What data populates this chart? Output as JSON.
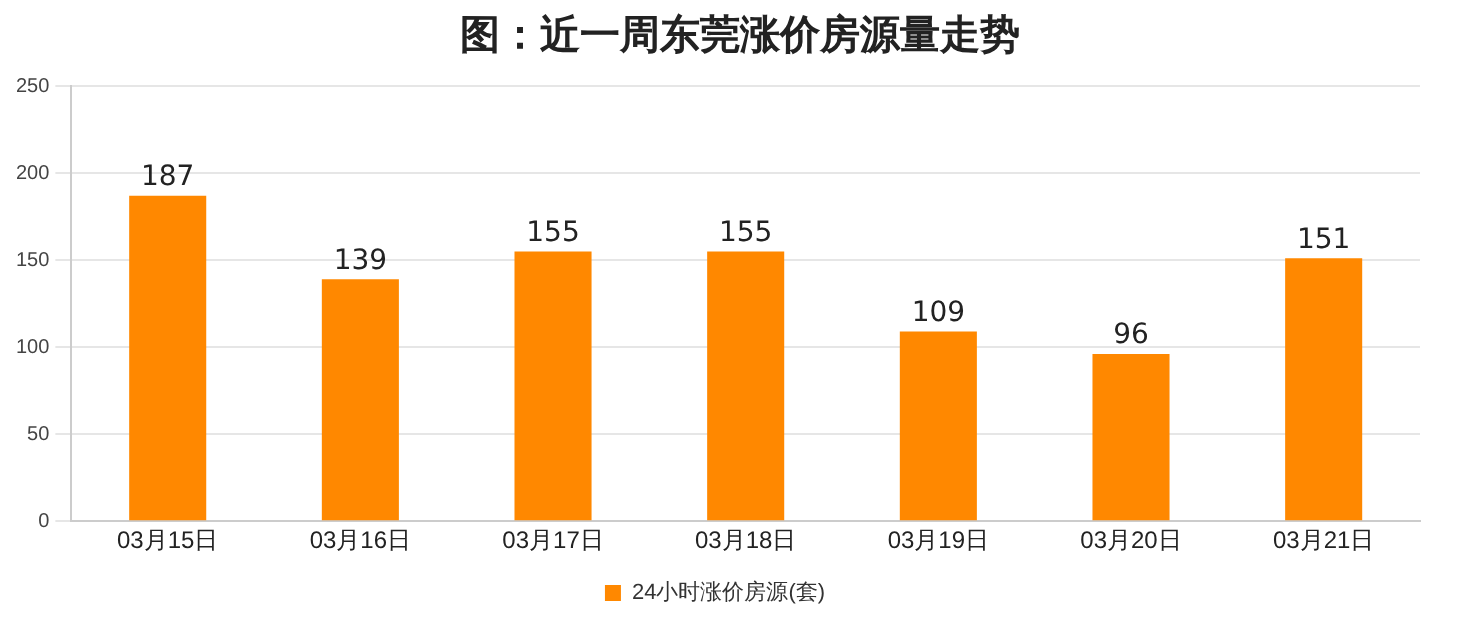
{
  "chart_data": {
    "type": "bar",
    "title": "图：近一周东莞涨价房源量走势",
    "categories": [
      "03月15日",
      "03月16日",
      "03月17日",
      "03月18日",
      "03月19日",
      "03月20日",
      "03月21日"
    ],
    "series": [
      {
        "name": "24小时涨价房源(套)",
        "color": "#ff8800",
        "values": [
          187,
          139,
          155,
          155,
          109,
          96,
          151
        ]
      }
    ],
    "ylim": [
      0,
      250
    ],
    "yticks": [
      0,
      50,
      100,
      150,
      200,
      250
    ],
    "grid": "y",
    "legend": "bottom",
    "data_labels": true
  }
}
